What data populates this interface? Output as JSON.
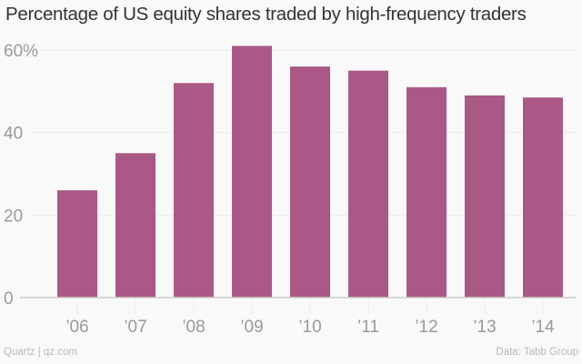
{
  "chart_data": {
    "type": "bar",
    "title": "Percentage of US equity shares traded by high-frequency traders",
    "xlabel": "",
    "ylabel": "",
    "categories": [
      "’06",
      "’07",
      "’08",
      "’09",
      "’10",
      "’11",
      "’12",
      "’13",
      "’14"
    ],
    "values": [
      26,
      35,
      52,
      61,
      56,
      55,
      51,
      49,
      48.5
    ],
    "ylim": [
      0,
      60
    ],
    "yticks": [
      0,
      20,
      40,
      60
    ],
    "ytick_labels": [
      "0",
      "20",
      "40",
      "60%"
    ],
    "grid": true,
    "legend": "none",
    "bar_color": "#aa5885"
  },
  "footer": {
    "source_left": "Quartz | qz.com",
    "source_right": "Data: Tabb Group"
  },
  "colors": {
    "background": "#f9f9f9",
    "gridline": "#ececec",
    "axis": "#cccccc",
    "text_muted": "#9a9a9a"
  }
}
